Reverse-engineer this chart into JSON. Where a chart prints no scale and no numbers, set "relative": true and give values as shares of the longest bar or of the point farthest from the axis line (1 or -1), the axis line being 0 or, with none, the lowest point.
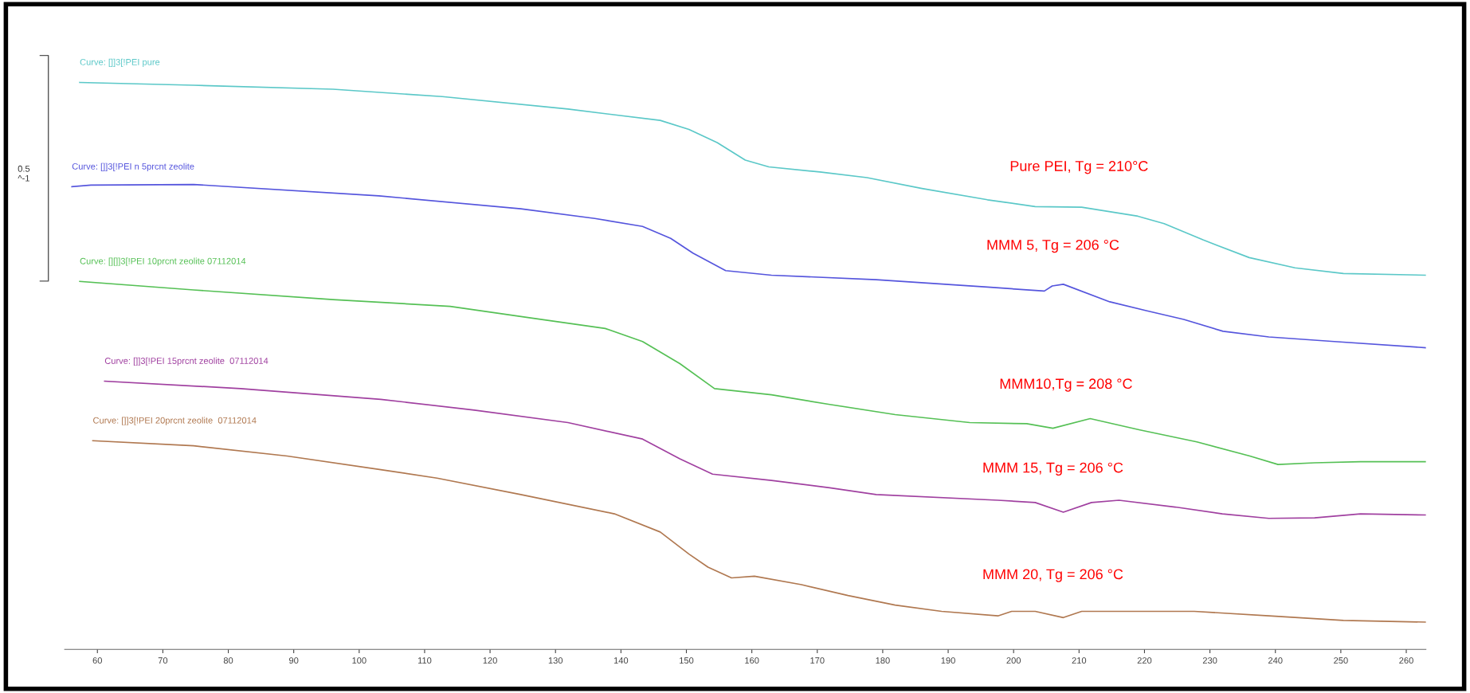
{
  "chart_data": {
    "type": "line",
    "relative": true,
    "legend": false,
    "grid": false,
    "marker": "none",
    "line_style": "solid",
    "tick_labels": "x",
    "xlim": [
      55,
      263
    ],
    "xticks": [
      60,
      70,
      80,
      90,
      100,
      110,
      120,
      130,
      140,
      150,
      160,
      170,
      180,
      190,
      200,
      210,
      220,
      230,
      240,
      250,
      260
    ],
    "series": [
      {
        "name": "Curve: []]3[!PEI pure",
        "color": "#5bc8c8",
        "x": [
          57.3,
          74.7,
          96,
          112.7,
          131.9,
          146,
          150.4,
          154.7,
          159,
          162.6,
          170.4,
          177.6,
          186,
          196,
          203.3,
          210.4,
          219,
          223,
          229,
          236,
          243,
          250.4,
          263
        ],
        "values": [
          1.0,
          0.995,
          0.988,
          0.975,
          0.953,
          0.933,
          0.917,
          0.894,
          0.863,
          0.851,
          0.842,
          0.832,
          0.813,
          0.793,
          0.781,
          0.78,
          0.764,
          0.751,
          0.722,
          0.691,
          0.673,
          0.663,
          0.66
        ]
      },
      {
        "name": "Curve: []]3[!PEI n 5prcnt zeolite",
        "color": "#5555dd",
        "x": [
          56.1,
          59,
          74.7,
          103,
          124.7,
          136,
          143.3,
          147.6,
          151,
          156,
          163,
          179,
          196,
          204.7,
          205.9,
          207.6,
          214.7,
          220.4,
          226,
          232,
          239,
          249,
          263
        ],
        "values": [
          0.816,
          0.819,
          0.82,
          0.8,
          0.777,
          0.76,
          0.746,
          0.725,
          0.699,
          0.668,
          0.66,
          0.652,
          0.639,
          0.632,
          0.641,
          0.644,
          0.613,
          0.597,
          0.582,
          0.561,
          0.551,
          0.543,
          0.532
        ]
      },
      {
        "name": "Curve: [][]]3[!PEI 10prcnt zeolite 07112014",
        "color": "#55c055",
        "x": [
          57.3,
          74.7,
          96,
          113.9,
          126,
          137.6,
          143.3,
          149,
          154.3,
          163,
          171.9,
          181.9,
          193.3,
          202,
          206,
          211.7,
          219.3,
          228,
          236.1,
          240.4,
          246,
          253,
          263
        ],
        "values": [
          0.649,
          0.634,
          0.617,
          0.605,
          0.585,
          0.566,
          0.543,
          0.504,
          0.46,
          0.449,
          0.432,
          0.414,
          0.4,
          0.398,
          0.39,
          0.407,
          0.387,
          0.366,
          0.341,
          0.326,
          0.329,
          0.331,
          0.331
        ]
      },
      {
        "name": "Curve: []]3[!PEI 15prcnt zeolite  07112014",
        "color": "#a040a0",
        "x": [
          61.1,
          81.9,
          103.3,
          117.6,
          131.9,
          143.3,
          149,
          154,
          163,
          171.9,
          179,
          197.6,
          203.3,
          207.6,
          211.9,
          216.1,
          224.7,
          231.9,
          239,
          246,
          253,
          263
        ],
        "values": [
          0.473,
          0.46,
          0.441,
          0.422,
          0.4,
          0.371,
          0.336,
          0.309,
          0.298,
          0.285,
          0.273,
          0.263,
          0.259,
          0.242,
          0.259,
          0.263,
          0.251,
          0.239,
          0.231,
          0.232,
          0.239,
          0.237
        ]
      },
      {
        "name": "Curve: []]3[!PEI 20prcnt zeolite  07112014",
        "color": "#b07850",
        "x": [
          59.3,
          74.7,
          89,
          103.3,
          111.9,
          124.7,
          139,
          146,
          150.4,
          153.3,
          156.9,
          160.4,
          167.6,
          174.7,
          181.9,
          189,
          197.6,
          199.7,
          203.3,
          207.6,
          210.4,
          220.4,
          227.6,
          239,
          250.4,
          263
        ],
        "values": [
          0.368,
          0.359,
          0.341,
          0.317,
          0.302,
          0.273,
          0.239,
          0.207,
          0.168,
          0.145,
          0.126,
          0.129,
          0.114,
          0.095,
          0.078,
          0.067,
          0.059,
          0.067,
          0.067,
          0.056,
          0.067,
          0.067,
          0.067,
          0.059,
          0.051,
          0.048
        ]
      }
    ],
    "annotations": [
      {
        "text": "Pure PEI, Tg = 210°C",
        "x": 210,
        "y": 0.78
      },
      {
        "text": "MMM 5, Tg = 206 °C",
        "x": 206,
        "y": 0.641
      },
      {
        "text": "MMM10,Tg = 208 °C",
        "x": 208,
        "y": 0.396
      },
      {
        "text": "MMM 15, Tg = 206 °C",
        "x": 206,
        "y": 0.248
      },
      {
        "text": "MMM 20, Tg = 206 °C",
        "x": 206,
        "y": 0.06
      },
      "0.5\n^-1"
    ]
  }
}
